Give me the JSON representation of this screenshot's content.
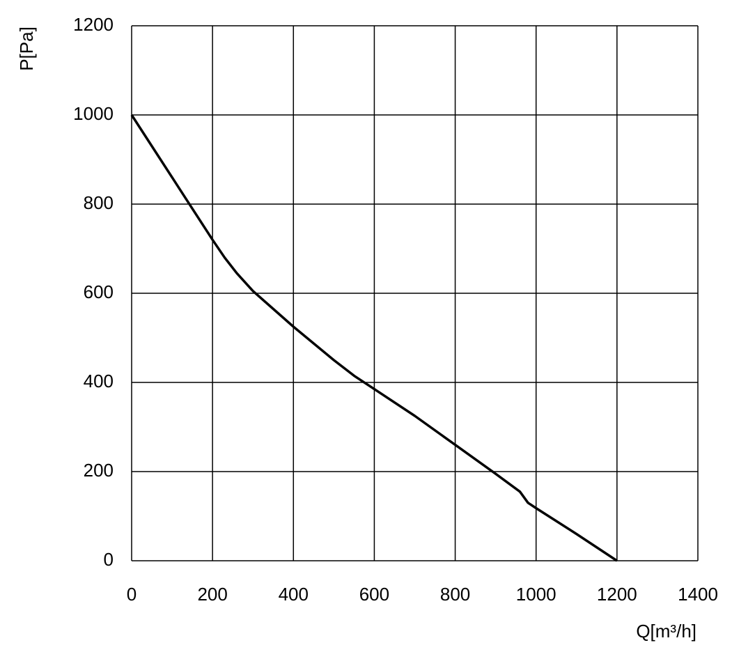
{
  "chart_data": {
    "type": "line",
    "xlabel": "Q[m³/h]",
    "ylabel": "P[Pa]",
    "x": [
      0,
      100,
      150,
      200,
      230,
      260,
      300,
      400,
      500,
      550,
      600,
      700,
      800,
      900,
      960,
      980,
      1000,
      1100,
      1200
    ],
    "series": [
      {
        "color": "#000000",
        "values": [
          1000,
          860,
          790,
          720,
          680,
          645,
          605,
          525,
          450,
          415,
          385,
          325,
          260,
          195,
          155,
          130,
          118,
          60,
          0
        ]
      }
    ],
    "xlim": [
      0,
      1400
    ],
    "xticks": [
      0,
      200,
      400,
      600,
      800,
      1000,
      1200,
      1400
    ],
    "ylim": [
      0,
      1200
    ],
    "yticks": [
      0,
      200,
      400,
      600,
      800,
      1000,
      1200
    ],
    "grid": true
  }
}
